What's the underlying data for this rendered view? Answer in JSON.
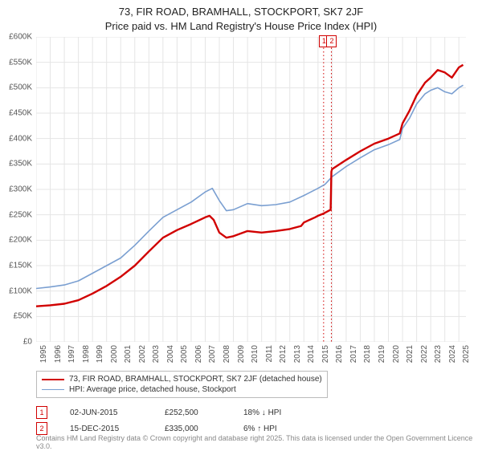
{
  "title_line1": "73, FIR ROAD, BRAMHALL, STOCKPORT, SK7 2JF",
  "title_line2": "Price paid vs. HM Land Registry's House Price Index (HPI)",
  "chart": {
    "type": "line",
    "background_color": "#ffffff",
    "grid_color": "#e5e5e5",
    "axis_label_color": "#555555",
    "axis_font_size": 10,
    "xlim": [
      1995,
      2025.5
    ],
    "ylim": [
      0,
      600000
    ],
    "ytick_step": 50000,
    "y_tick_labels": [
      "£0",
      "£50K",
      "£100K",
      "£150K",
      "£200K",
      "£250K",
      "£300K",
      "£350K",
      "£400K",
      "£450K",
      "£500K",
      "£550K",
      "£600K"
    ],
    "x_ticks": [
      1995,
      1996,
      1997,
      1998,
      1999,
      2000,
      2001,
      2002,
      2003,
      2004,
      2005,
      2006,
      2007,
      2008,
      2009,
      2010,
      2011,
      2012,
      2013,
      2014,
      2015,
      2016,
      2017,
      2018,
      2019,
      2020,
      2021,
      2022,
      2023,
      2024,
      2025
    ],
    "series": [
      {
        "key": "price_paid",
        "label": "73, FIR ROAD, BRAMHALL, STOCKPORT, SK7 2JF (detached house)",
        "color": "#d10000",
        "line_width": 2.4,
        "points": [
          [
            1995,
            70000
          ],
          [
            1996,
            72000
          ],
          [
            1997,
            75000
          ],
          [
            1998,
            82000
          ],
          [
            1999,
            95000
          ],
          [
            2000,
            110000
          ],
          [
            2001,
            128000
          ],
          [
            2002,
            150000
          ],
          [
            2003,
            178000
          ],
          [
            2004,
            205000
          ],
          [
            2005,
            220000
          ],
          [
            2006,
            232000
          ],
          [
            2007,
            245000
          ],
          [
            2007.3,
            248000
          ],
          [
            2007.6,
            240000
          ],
          [
            2008,
            215000
          ],
          [
            2008.5,
            205000
          ],
          [
            2009,
            208000
          ],
          [
            2010,
            218000
          ],
          [
            2011,
            215000
          ],
          [
            2012,
            218000
          ],
          [
            2013,
            222000
          ],
          [
            2013.8,
            228000
          ],
          [
            2014,
            235000
          ],
          [
            2014.8,
            245000
          ],
          [
            2015,
            248000
          ],
          [
            2015.4,
            252500
          ],
          [
            2015.9,
            260000
          ],
          [
            2015.95,
            335000
          ],
          [
            2016,
            340000
          ],
          [
            2017,
            358000
          ],
          [
            2018,
            375000
          ],
          [
            2019,
            390000
          ],
          [
            2020,
            400000
          ],
          [
            2020.8,
            410000
          ],
          [
            2021,
            430000
          ],
          [
            2021.5,
            455000
          ],
          [
            2022,
            485000
          ],
          [
            2022.6,
            510000
          ],
          [
            2023,
            520000
          ],
          [
            2023.5,
            535000
          ],
          [
            2024,
            530000
          ],
          [
            2024.5,
            520000
          ],
          [
            2025,
            540000
          ],
          [
            2025.3,
            545000
          ]
        ]
      },
      {
        "key": "hpi",
        "label": "HPI: Average price, detached house, Stockport",
        "color": "#7a9fd1",
        "line_width": 1.6,
        "points": [
          [
            1995,
            105000
          ],
          [
            1996,
            108000
          ],
          [
            1997,
            112000
          ],
          [
            1998,
            120000
          ],
          [
            1999,
            135000
          ],
          [
            2000,
            150000
          ],
          [
            2001,
            165000
          ],
          [
            2002,
            190000
          ],
          [
            2003,
            218000
          ],
          [
            2004,
            245000
          ],
          [
            2005,
            260000
          ],
          [
            2006,
            275000
          ],
          [
            2007,
            295000
          ],
          [
            2007.5,
            302000
          ],
          [
            2008,
            278000
          ],
          [
            2008.5,
            258000
          ],
          [
            2009,
            260000
          ],
          [
            2010,
            272000
          ],
          [
            2011,
            268000
          ],
          [
            2012,
            270000
          ],
          [
            2013,
            275000
          ],
          [
            2014,
            288000
          ],
          [
            2015,
            302000
          ],
          [
            2015.5,
            310000
          ],
          [
            2016,
            325000
          ],
          [
            2017,
            345000
          ],
          [
            2018,
            362000
          ],
          [
            2019,
            378000
          ],
          [
            2020,
            388000
          ],
          [
            2020.8,
            398000
          ],
          [
            2021,
            420000
          ],
          [
            2021.5,
            440000
          ],
          [
            2022,
            468000
          ],
          [
            2022.6,
            488000
          ],
          [
            2023,
            495000
          ],
          [
            2023.5,
            500000
          ],
          [
            2024,
            492000
          ],
          [
            2024.5,
            488000
          ],
          [
            2025,
            500000
          ],
          [
            2025.3,
            505000
          ]
        ]
      }
    ],
    "markers": [
      {
        "id": "1",
        "x": 2015.4,
        "color": "#d10000"
      },
      {
        "id": "2",
        "x": 2015.95,
        "color": "#d10000"
      }
    ]
  },
  "legend": {
    "items": [
      {
        "color": "#d10000",
        "width": 2.4,
        "label": "73, FIR ROAD, BRAMHALL, STOCKPORT, SK7 2JF (detached house)"
      },
      {
        "color": "#7a9fd1",
        "width": 1.6,
        "label": "HPI: Average price, detached house, Stockport"
      }
    ]
  },
  "sales": [
    {
      "id": "1",
      "color": "#d10000",
      "date": "02-JUN-2015",
      "price": "£252,500",
      "diff": "18% ↓ HPI"
    },
    {
      "id": "2",
      "color": "#d10000",
      "date": "15-DEC-2015",
      "price": "£335,000",
      "diff": "6% ↑ HPI"
    }
  ],
  "footer": "Contains HM Land Registry data © Crown copyright and database right 2025.\nThis data is licensed under the Open Government Licence v3.0."
}
